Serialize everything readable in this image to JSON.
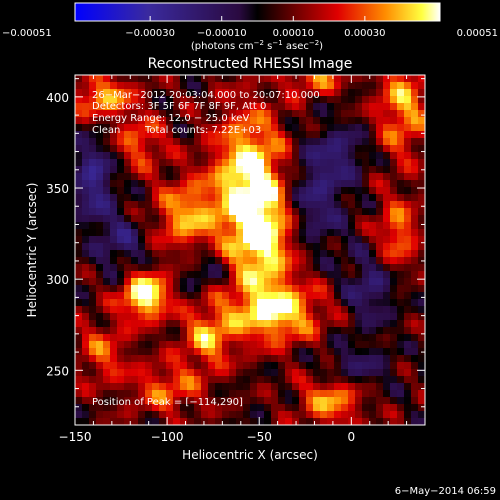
{
  "chart_data": {
    "type": "heatmap",
    "title": "Reconstructed RHESSI Image",
    "xlabel": "Heliocentric X (arcsec)",
    "ylabel": "Heliocentric Y (arcsec)",
    "xlim": [
      -150,
      40
    ],
    "ylim": [
      220,
      412
    ],
    "x_ticks": [
      {
        "value": -150,
        "label": "−150"
      },
      {
        "value": -100,
        "label": "−100"
      },
      {
        "value": -50,
        "label": "−50"
      },
      {
        "value": 0,
        "label": "0"
      }
    ],
    "y_ticks": [
      {
        "value": 250,
        "label": "250"
      },
      {
        "value": 300,
        "label": "300"
      },
      {
        "value": 350,
        "label": "350"
      },
      {
        "value": 400,
        "label": "400"
      }
    ],
    "colorbar": {
      "min": -0.00051,
      "max": 0.00051,
      "ticks": [
        {
          "value": -0.00051,
          "label": "−0.00051"
        },
        {
          "value": -0.0003,
          "label": "−0.00030"
        },
        {
          "value": -0.0001,
          "label": "−0.00010"
        },
        {
          "value": 0.0001,
          "label": "0.00010"
        },
        {
          "value": 0.0003,
          "label": "0.00030"
        },
        {
          "value": 0.00051,
          "label": "0.00051"
        }
      ],
      "unit_parts": [
        "(photons cm",
        "−2",
        " s",
        "−1",
        " asec",
        "−2",
        ")"
      ]
    },
    "annotations": [
      "26−Mar−2012 20:03:04.000 to 20:07:10.000",
      "Detectors: 3F 5F 6F 7F 8F 9F, Att 0",
      "Energy Range: 12.0 − 25.0 keV",
      "Clean",
      "Total counts: 7.22E+03"
    ],
    "peak_label": "Position of Peak = [−114,290]",
    "peak": {
      "x": -114,
      "y": 290,
      "value": 0.00051
    },
    "sources": [
      {
        "x": -55,
        "y": 355,
        "sx": 14,
        "sy": 26,
        "value": 0.00047
      },
      {
        "x": -112,
        "y": 291,
        "sx": 9,
        "sy": 9,
        "value": 0.00051
      },
      {
        "x": -42,
        "y": 282,
        "sx": 18,
        "sy": 12,
        "value": 0.00042
      },
      {
        "x": -48,
        "y": 320,
        "sx": 12,
        "sy": 18,
        "value": 0.00036
      },
      {
        "x": -90,
        "y": 335,
        "sx": 12,
        "sy": 14,
        "value": 0.00032
      },
      {
        "x": -78,
        "y": 268,
        "sx": 10,
        "sy": 12,
        "value": 0.0003
      },
      {
        "x": -135,
        "y": 400,
        "sx": 12,
        "sy": 8,
        "value": 0.00033
      },
      {
        "x": -115,
        "y": 375,
        "sx": 10,
        "sy": 10,
        "value": 0.00024
      },
      {
        "x": 28,
        "y": 395,
        "sx": 10,
        "sy": 20,
        "value": 0.00031
      },
      {
        "x": 25,
        "y": 325,
        "sx": 8,
        "sy": 14,
        "value": 0.00028
      },
      {
        "x": -10,
        "y": 235,
        "sx": 12,
        "sy": 10,
        "value": 0.00035
      },
      {
        "x": -135,
        "y": 260,
        "sx": 10,
        "sy": 12,
        "value": 0.00022
      },
      {
        "x": -100,
        "y": 240,
        "sx": 14,
        "sy": 10,
        "value": 0.00024
      },
      {
        "x": -20,
        "y": 410,
        "sx": 10,
        "sy": 6,
        "value": 0.00028
      },
      {
        "x": -140,
        "y": 355,
        "sx": 8,
        "sy": 16,
        "value": -0.0003
      },
      {
        "x": -20,
        "y": 345,
        "sx": 12,
        "sy": 20,
        "value": -0.00024
      },
      {
        "x": 10,
        "y": 295,
        "sx": 10,
        "sy": 14,
        "value": -0.00022
      },
      {
        "x": -125,
        "y": 320,
        "sx": 10,
        "sy": 12,
        "value": -0.0002
      },
      {
        "x": -5,
        "y": 370,
        "sx": 10,
        "sy": 10,
        "value": -0.00018
      },
      {
        "x": -80,
        "y": 305,
        "sx": 8,
        "sy": 8,
        "value": -0.00016
      },
      {
        "x": 0,
        "y": 250,
        "sx": 14,
        "sy": 10,
        "value": -0.0002
      }
    ]
  },
  "footer": {
    "timestamp": "6−May−2014 06:59"
  }
}
